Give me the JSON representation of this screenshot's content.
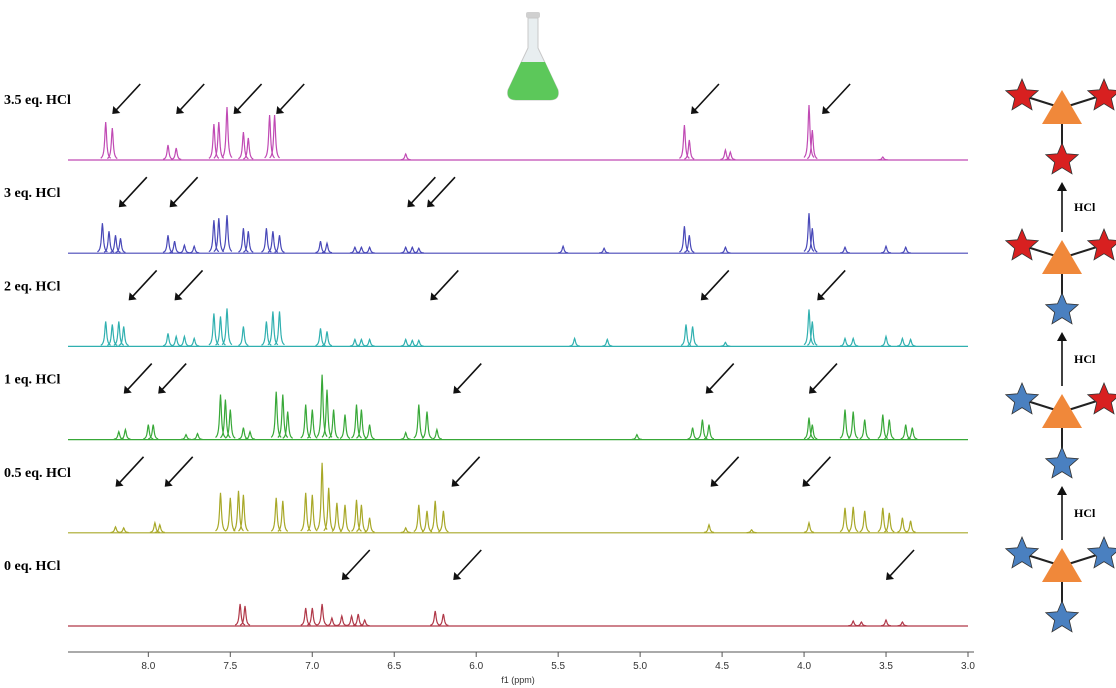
{
  "chart_data": {
    "type": "spectrum",
    "x_label": "f1 (ppm)",
    "xlim": [
      8.49,
      3.0
    ],
    "xticks": [
      {
        "value": 8,
        "label": "8.0"
      },
      7.5,
      {
        "value": 7,
        "label": "7.0"
      },
      6.5,
      {
        "value": 6,
        "label": "6.0"
      },
      5.5,
      {
        "value": 5,
        "label": "5.0"
      },
      4.5,
      {
        "value": 4,
        "label": "4.0"
      },
      3.5,
      {
        "value": 3,
        "label": "3.0"
      }
    ],
    "series": [
      {
        "name": "3.5 eq. HCl",
        "color": "#c04ab4",
        "x": [
          8.26,
          8.22,
          7.88,
          7.83,
          7.6,
          7.57,
          7.52,
          7.42,
          7.39,
          7.26,
          7.23,
          6.43,
          4.73,
          4.7,
          4.48,
          4.45,
          3.97,
          3.95,
          3.52
        ],
        "values": [
          38,
          32,
          15,
          12,
          36,
          38,
          53,
          28,
          22,
          45,
          45,
          6,
          35,
          20,
          10,
          8,
          55,
          30,
          3
        ],
        "arrows": [
          8.22,
          7.83,
          7.48,
          7.22,
          4.69,
          3.89
        ]
      },
      {
        "name": "3 eq. HCl",
        "color": "#4848b8",
        "x": [
          8.28,
          8.24,
          8.2,
          8.17,
          7.88,
          7.84,
          7.78,
          7.72,
          7.6,
          7.57,
          7.52,
          7.42,
          7.39,
          7.28,
          7.24,
          7.2,
          6.95,
          6.91,
          6.74,
          6.7,
          6.65,
          6.43,
          6.39,
          6.35,
          5.47,
          5.22,
          4.73,
          4.7,
          4.48,
          3.97,
          3.95,
          3.75,
          3.5,
          3.38
        ],
        "values": [
          30,
          22,
          18,
          15,
          18,
          12,
          8,
          7,
          33,
          35,
          38,
          25,
          22,
          25,
          22,
          18,
          12,
          10,
          6,
          6,
          6,
          6,
          6,
          5,
          7,
          5,
          27,
          18,
          6,
          40,
          25,
          6,
          7,
          6
        ],
        "arrows": [
          8.18,
          7.87,
          6.42,
          6.3
        ]
      },
      {
        "name": "2 eq. HCl",
        "color": "#30b0b0",
        "x": [
          8.26,
          8.22,
          8.18,
          8.15,
          7.88,
          7.83,
          7.78,
          7.72,
          7.6,
          7.56,
          7.52,
          7.42,
          7.28,
          7.24,
          7.2,
          6.95,
          6.91,
          6.74,
          6.7,
          6.65,
          6.43,
          6.39,
          6.35,
          5.4,
          5.2,
          4.72,
          4.68,
          4.48,
          3.97,
          3.95,
          3.75,
          3.7,
          3.5,
          3.4,
          3.35
        ],
        "values": [
          25,
          22,
          25,
          20,
          13,
          10,
          10,
          8,
          33,
          30,
          38,
          20,
          25,
          35,
          35,
          18,
          15,
          7,
          7,
          7,
          7,
          6,
          6,
          8,
          7,
          22,
          20,
          4,
          37,
          25,
          8,
          8,
          10,
          8,
          7
        ],
        "arrows": [
          8.12,
          7.84,
          6.28,
          4.63,
          3.92
        ]
      },
      {
        "name": "1 eq. HCl",
        "color": "#38a838",
        "x": [
          8.18,
          8.14,
          8.0,
          7.97,
          7.77,
          7.7,
          7.56,
          7.53,
          7.5,
          7.42,
          7.38,
          7.22,
          7.18,
          7.15,
          7.04,
          7.0,
          6.94,
          6.91,
          6.87,
          6.8,
          6.73,
          6.7,
          6.65,
          6.43,
          6.35,
          6.3,
          6.24,
          5.02,
          4.68,
          4.62,
          4.58,
          3.97,
          3.95,
          3.75,
          3.7,
          3.63,
          3.52,
          3.48,
          3.38,
          3.34
        ],
        "values": [
          8,
          10,
          15,
          15,
          5,
          6,
          45,
          40,
          30,
          12,
          8,
          48,
          45,
          28,
          35,
          30,
          65,
          50,
          30,
          25,
          35,
          30,
          15,
          7,
          35,
          28,
          10,
          5,
          12,
          20,
          15,
          22,
          15,
          30,
          28,
          20,
          25,
          20,
          15,
          12
        ],
        "arrows": [
          8.15,
          7.94,
          6.14,
          4.6,
          3.97
        ]
      },
      {
        "name": "0.5 eq. HCl",
        "color": "#a8a828",
        "x": [
          8.2,
          8.15,
          7.96,
          7.93,
          7.56,
          7.5,
          7.45,
          7.42,
          7.22,
          7.18,
          7.04,
          7.0,
          6.94,
          6.9,
          6.85,
          6.8,
          6.73,
          6.7,
          6.65,
          6.43,
          6.35,
          6.3,
          6.25,
          6.2,
          4.58,
          4.32,
          3.97,
          3.75,
          3.7,
          3.63,
          3.52,
          3.48,
          3.4,
          3.35
        ],
        "values": [
          6,
          5,
          10,
          8,
          40,
          35,
          42,
          38,
          35,
          32,
          40,
          38,
          70,
          45,
          30,
          28,
          33,
          28,
          15,
          5,
          28,
          22,
          32,
          22,
          8,
          3,
          10,
          25,
          26,
          22,
          25,
          20,
          15,
          12
        ],
        "arrows": [
          8.2,
          7.9,
          6.15,
          4.57,
          4.01
        ]
      },
      {
        "name": "0 eq. HCl",
        "color": "#b03848",
        "x": [
          7.44,
          7.41,
          7.04,
          7.0,
          6.94,
          6.88,
          6.82,
          6.76,
          6.72,
          6.68,
          6.25,
          6.2,
          3.7,
          3.65,
          3.5,
          3.4
        ],
        "values": [
          22,
          20,
          18,
          18,
          22,
          8,
          10,
          10,
          12,
          6,
          15,
          12,
          5,
          4,
          6,
          4
        ],
        "arrows": [
          6.82,
          6.14,
          3.5
        ]
      }
    ]
  },
  "scheme": {
    "labels": [
      "HCl",
      "HCl",
      "HCl"
    ]
  }
}
